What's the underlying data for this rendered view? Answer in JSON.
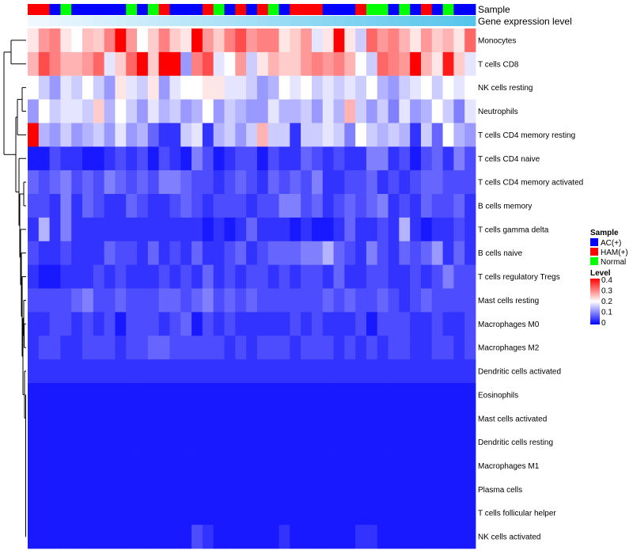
{
  "chart_data": {
    "type": "heatmap",
    "annotation_labels": [
      "Sample",
      "Gene expression level"
    ],
    "rows": [
      "Monocytes",
      "T cells CD8",
      "NK cells resting",
      "Neutrophils",
      "T cells CD4 memory resting",
      "T cells CD4 naive",
      "T cells CD4 memory activated",
      "B cells memory",
      "T cells gamma delta",
      "B cells naive",
      "T cells regulatory  Tregs",
      "Mast cells resting",
      "Macrophages M0",
      "Macrophages M2",
      "Dendritic cells activated",
      "Eosinophils",
      "Mast cells activated",
      "Dendritic cells resting",
      "Macrophages M1",
      "Plasma cells",
      "T cells follicular helper",
      "NK cells activated"
    ],
    "sample_groups": [
      "HAM(+)",
      "HAM(+)",
      "AC(+)",
      "Normal",
      "AC(+)",
      "AC(+)",
      "AC(+)",
      "AC(+)",
      "AC(+)",
      "Normal",
      "AC(+)",
      "Normal",
      "HAM(+)",
      "AC(+)",
      "AC(+)",
      "AC(+)",
      "HAM(+)",
      "Normal",
      "AC(+)",
      "HAM(+)",
      "AC(+)",
      "HAM(+)",
      "Normal",
      "AC(+)",
      "HAM(+)",
      "HAM(+)",
      "HAM(+)",
      "AC(+)",
      "AC(+)",
      "AC(+)",
      "HAM(+)",
      "Normal",
      "Normal",
      "AC(+)",
      "Normal",
      "AC(+)",
      "HAM(+)",
      "AC(+)",
      "Normal",
      "AC(+)",
      "AC(+)"
    ],
    "gene_expression_group": "low-to-high gradient",
    "legend": {
      "sample": {
        "title": "Sample",
        "entries": [
          {
            "label": "AC(+)",
            "color": "#0000ff"
          },
          {
            "label": "HAM(+)",
            "color": "#ff0000"
          },
          {
            "label": "Normal",
            "color": "#00ff00"
          }
        ]
      },
      "level": {
        "title": "Level",
        "min": 0,
        "max": 0.4,
        "ticks": [
          "0.4",
          "0.3",
          "0.2",
          "0.1",
          "0"
        ],
        "colors": [
          "#0000ff",
          "#ffffff",
          "#ff0000"
        ],
        "placement": "right"
      }
    },
    "values": [
      [
        0.22,
        0.28,
        0.3,
        0.22,
        0.2,
        0.25,
        0.24,
        0.3,
        0.4,
        0.28,
        0.2,
        0.24,
        0.3,
        0.24,
        0.22,
        0.4,
        0.28,
        0.24,
        0.3,
        0.34,
        0.28,
        0.3,
        0.3,
        0.22,
        0.24,
        0.28,
        0.18,
        0.22,
        0.4,
        0.22,
        0.16,
        0.32,
        0.28,
        0.3,
        0.26,
        0.22,
        0.28,
        0.24,
        0.26,
        0.22,
        0.32
      ],
      [
        0.26,
        0.34,
        0.3,
        0.26,
        0.26,
        0.28,
        0.32,
        0.18,
        0.24,
        0.32,
        0.4,
        0.24,
        0.4,
        0.4,
        0.12,
        0.3,
        0.34,
        0.18,
        0.2,
        0.28,
        0.16,
        0.22,
        0.26,
        0.24,
        0.24,
        0.28,
        0.3,
        0.28,
        0.3,
        0.26,
        0.2,
        0.16,
        0.32,
        0.3,
        0.28,
        0.4,
        0.26,
        0.22,
        0.38,
        0.24,
        0.18
      ],
      [
        0.2,
        0.16,
        0.12,
        0.18,
        0.16,
        0.2,
        0.16,
        0.12,
        0.22,
        0.18,
        0.16,
        0.22,
        0.12,
        0.18,
        0.2,
        0.2,
        0.22,
        0.22,
        0.18,
        0.18,
        0.16,
        0.12,
        0.14,
        0.2,
        0.18,
        0.2,
        0.16,
        0.18,
        0.16,
        0.18,
        0.16,
        0.2,
        0.14,
        0.12,
        0.16,
        0.18,
        0.2,
        0.16,
        0.2,
        0.18,
        0.2
      ],
      [
        0.12,
        0.2,
        0.16,
        0.18,
        0.18,
        0.16,
        0.24,
        0.14,
        0.2,
        0.16,
        0.12,
        0.18,
        0.14,
        0.16,
        0.12,
        0.14,
        0.2,
        0.12,
        0.16,
        0.14,
        0.12,
        0.12,
        0.18,
        0.14,
        0.14,
        0.16,
        0.12,
        0.18,
        0.14,
        0.26,
        0.16,
        0.12,
        0.16,
        0.1,
        0.18,
        0.12,
        0.14,
        0.2,
        0.16,
        0.1,
        0.18
      ],
      [
        0.4,
        0.14,
        0.12,
        0.16,
        0.12,
        0.14,
        0.16,
        0.12,
        0.18,
        0.12,
        0.14,
        0.08,
        0.04,
        0.04,
        0.16,
        0.18,
        0.04,
        0.14,
        0.16,
        0.12,
        0.16,
        0.26,
        0.16,
        0.16,
        0.04,
        0.16,
        0.16,
        0.18,
        0.16,
        0.1,
        0.2,
        0.16,
        0.14,
        0.16,
        0.14,
        0.04,
        0.16,
        0.08,
        0.2,
        0.14,
        0.12
      ],
      [
        0.02,
        0.02,
        0.06,
        0.04,
        0.04,
        0.02,
        0.02,
        0.04,
        0.06,
        0.04,
        0.06,
        0.02,
        0.06,
        0.04,
        0.02,
        0.1,
        0.06,
        0.02,
        0.04,
        0.06,
        0.06,
        0.02,
        0.06,
        0.04,
        0.04,
        0.08,
        0.06,
        0.04,
        0.06,
        0.04,
        0.04,
        0.1,
        0.1,
        0.04,
        0.06,
        0.02,
        0.06,
        0.08,
        0.04,
        0.1,
        0.06
      ],
      [
        0.08,
        0.06,
        0.08,
        0.1,
        0.06,
        0.08,
        0.06,
        0.1,
        0.08,
        0.06,
        0.08,
        0.06,
        0.1,
        0.1,
        0.08,
        0.06,
        0.06,
        0.04,
        0.06,
        0.08,
        0.06,
        0.04,
        0.08,
        0.06,
        0.08,
        0.06,
        0.1,
        0.04,
        0.04,
        0.06,
        0.06,
        0.08,
        0.04,
        0.06,
        0.04,
        0.06,
        0.08,
        0.08,
        0.06,
        0.06,
        0.06
      ],
      [
        0.06,
        0.06,
        0.04,
        0.1,
        0.04,
        0.08,
        0.06,
        0.04,
        0.04,
        0.08,
        0.06,
        0.04,
        0.04,
        0.06,
        0.08,
        0.06,
        0.04,
        0.06,
        0.06,
        0.06,
        0.04,
        0.06,
        0.06,
        0.1,
        0.1,
        0.06,
        0.08,
        0.04,
        0.06,
        0.08,
        0.06,
        0.08,
        0.1,
        0.04,
        0.06,
        0.04,
        0.08,
        0.06,
        0.06,
        0.08,
        0.04
      ],
      [
        0.04,
        0.14,
        0.04,
        0.1,
        0.04,
        0.04,
        0.04,
        0.04,
        0.04,
        0.04,
        0.04,
        0.04,
        0.04,
        0.04,
        0.04,
        0.04,
        0.02,
        0.04,
        0.02,
        0.04,
        0.08,
        0.04,
        0.04,
        0.04,
        0.02,
        0.04,
        0.02,
        0.02,
        0.04,
        0.08,
        0.04,
        0.04,
        0.06,
        0.04,
        0.14,
        0.04,
        0.02,
        0.04,
        0.04,
        0.06,
        0.04
      ],
      [
        0.06,
        0.04,
        0.04,
        0.06,
        0.04,
        0.04,
        0.04,
        0.08,
        0.06,
        0.06,
        0.04,
        0.08,
        0.04,
        0.06,
        0.04,
        0.08,
        0.04,
        0.04,
        0.06,
        0.08,
        0.04,
        0.06,
        0.08,
        0.08,
        0.08,
        0.1,
        0.1,
        0.14,
        0.08,
        0.06,
        0.04,
        0.1,
        0.06,
        0.04,
        0.08,
        0.06,
        0.08,
        0.12,
        0.04,
        0.08,
        0.04
      ],
      [
        0.04,
        0.02,
        0.02,
        0.04,
        0.04,
        0.04,
        0.06,
        0.04,
        0.06,
        0.04,
        0.04,
        0.04,
        0.06,
        0.04,
        0.06,
        0.04,
        0.08,
        0.04,
        0.06,
        0.04,
        0.06,
        0.06,
        0.04,
        0.06,
        0.04,
        0.06,
        0.06,
        0.04,
        0.08,
        0.04,
        0.04,
        0.06,
        0.06,
        0.04,
        0.04,
        0.06,
        0.04,
        0.06,
        0.1,
        0.06,
        0.06
      ],
      [
        0.06,
        0.06,
        0.06,
        0.06,
        0.08,
        0.1,
        0.06,
        0.06,
        0.08,
        0.06,
        0.06,
        0.06,
        0.08,
        0.08,
        0.06,
        0.08,
        0.1,
        0.06,
        0.08,
        0.06,
        0.08,
        0.06,
        0.06,
        0.06,
        0.06,
        0.06,
        0.06,
        0.08,
        0.06,
        0.08,
        0.06,
        0.06,
        0.08,
        0.06,
        0.04,
        0.06,
        0.08,
        0.06,
        0.06,
        0.06,
        0.06
      ],
      [
        0.04,
        0.04,
        0.06,
        0.06,
        0.04,
        0.06,
        0.04,
        0.06,
        0.02,
        0.06,
        0.06,
        0.06,
        0.04,
        0.06,
        0.08,
        0.02,
        0.06,
        0.04,
        0.06,
        0.04,
        0.04,
        0.04,
        0.04,
        0.04,
        0.06,
        0.04,
        0.06,
        0.04,
        0.04,
        0.04,
        0.06,
        0.02,
        0.06,
        0.06,
        0.06,
        0.04,
        0.04,
        0.06,
        0.04,
        0.04,
        0.06
      ],
      [
        0.04,
        0.06,
        0.06,
        0.04,
        0.04,
        0.06,
        0.06,
        0.06,
        0.04,
        0.06,
        0.06,
        0.08,
        0.08,
        0.06,
        0.06,
        0.06,
        0.06,
        0.06,
        0.04,
        0.06,
        0.04,
        0.06,
        0.06,
        0.06,
        0.04,
        0.06,
        0.06,
        0.06,
        0.04,
        0.06,
        0.04,
        0.06,
        0.04,
        0.06,
        0.06,
        0.04,
        0.04,
        0.06,
        0.06,
        0.04,
        0.06
      ],
      [
        0.04,
        0.04,
        0.04,
        0.04,
        0.04,
        0.04,
        0.04,
        0.04,
        0.04,
        0.04,
        0.04,
        0.04,
        0.04,
        0.04,
        0.04,
        0.04,
        0.04,
        0.04,
        0.04,
        0.04,
        0.04,
        0.04,
        0.04,
        0.04,
        0.04,
        0.04,
        0.04,
        0.04,
        0.04,
        0.04,
        0.04,
        0.04,
        0.04,
        0.04,
        0.04,
        0.04,
        0.04,
        0.04,
        0.04,
        0.04,
        0.04
      ],
      [
        0.02,
        0.02,
        0.02,
        0.02,
        0.02,
        0.02,
        0.02,
        0.02,
        0.02,
        0.02,
        0.02,
        0.02,
        0.02,
        0.02,
        0.02,
        0.02,
        0.02,
        0.02,
        0.02,
        0.02,
        0.02,
        0.02,
        0.02,
        0.02,
        0.02,
        0.02,
        0.02,
        0.02,
        0.02,
        0.02,
        0.02,
        0.02,
        0.02,
        0.02,
        0.02,
        0.02,
        0.02,
        0.02,
        0.02,
        0.02,
        0.02
      ],
      [
        0.02,
        0.02,
        0.02,
        0.02,
        0.02,
        0.02,
        0.02,
        0.02,
        0.02,
        0.02,
        0.02,
        0.02,
        0.02,
        0.02,
        0.02,
        0.02,
        0.02,
        0.02,
        0.02,
        0.02,
        0.02,
        0.02,
        0.02,
        0.02,
        0.02,
        0.02,
        0.02,
        0.02,
        0.02,
        0.02,
        0.02,
        0.02,
        0.02,
        0.02,
        0.02,
        0.02,
        0.02,
        0.02,
        0.02,
        0.02,
        0.02
      ],
      [
        0.02,
        0.02,
        0.02,
        0.02,
        0.02,
        0.02,
        0.02,
        0.02,
        0.02,
        0.02,
        0.02,
        0.02,
        0.02,
        0.02,
        0.02,
        0.02,
        0.02,
        0.02,
        0.02,
        0.02,
        0.02,
        0.02,
        0.02,
        0.02,
        0.02,
        0.02,
        0.02,
        0.02,
        0.02,
        0.02,
        0.02,
        0.02,
        0.02,
        0.02,
        0.02,
        0.02,
        0.02,
        0.02,
        0.02,
        0.02,
        0.02
      ],
      [
        0.02,
        0.02,
        0.02,
        0.02,
        0.02,
        0.02,
        0.02,
        0.02,
        0.02,
        0.02,
        0.02,
        0.02,
        0.02,
        0.02,
        0.02,
        0.02,
        0.02,
        0.02,
        0.02,
        0.02,
        0.02,
        0.02,
        0.02,
        0.02,
        0.02,
        0.02,
        0.02,
        0.02,
        0.02,
        0.02,
        0.02,
        0.02,
        0.02,
        0.02,
        0.02,
        0.02,
        0.02,
        0.02,
        0.02,
        0.02,
        0.02
      ],
      [
        0.02,
        0.02,
        0.02,
        0.02,
        0.02,
        0.02,
        0.02,
        0.02,
        0.02,
        0.02,
        0.02,
        0.02,
        0.02,
        0.02,
        0.02,
        0.02,
        0.02,
        0.02,
        0.02,
        0.02,
        0.02,
        0.02,
        0.02,
        0.02,
        0.02,
        0.02,
        0.02,
        0.02,
        0.02,
        0.02,
        0.02,
        0.02,
        0.02,
        0.02,
        0.02,
        0.02,
        0.02,
        0.02,
        0.02,
        0.02,
        0.02
      ],
      [
        0.02,
        0.02,
        0.02,
        0.02,
        0.02,
        0.02,
        0.02,
        0.02,
        0.02,
        0.02,
        0.02,
        0.02,
        0.02,
        0.02,
        0.02,
        0.02,
        0.02,
        0.02,
        0.02,
        0.02,
        0.02,
        0.02,
        0.02,
        0.02,
        0.02,
        0.02,
        0.02,
        0.02,
        0.02,
        0.02,
        0.02,
        0.02,
        0.02,
        0.02,
        0.02,
        0.02,
        0.02,
        0.02,
        0.02,
        0.02,
        0.02
      ],
      [
        0.02,
        0.02,
        0.02,
        0.02,
        0.02,
        0.02,
        0.02,
        0.02,
        0.02,
        0.02,
        0.02,
        0.02,
        0.02,
        0.02,
        0.02,
        0.06,
        0.04,
        0.02,
        0.02,
        0.02,
        0.02,
        0.02,
        0.02,
        0.04,
        0.02,
        0.02,
        0.02,
        0.02,
        0.02,
        0.02,
        0.04,
        0.04,
        0.02,
        0.02,
        0.02,
        0.02,
        0.02,
        0.02,
        0.02,
        0.02,
        0.02
      ]
    ]
  }
}
